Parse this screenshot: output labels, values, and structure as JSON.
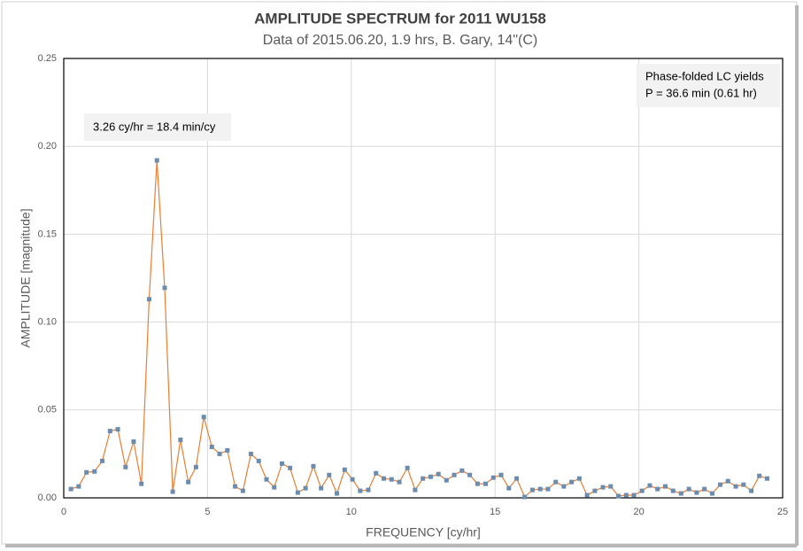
{
  "chart_data": {
    "type": "line",
    "title": "AMPLITUDE SPECTRUM for 2011 WU158",
    "subtitle": "Data of 2015.06.20, 1.9 hrs, B. Gary, 14\"(C)",
    "x_label": "FREQUENCY [cy/hr]",
    "y_label": "AMPLITUDE [magnitude]",
    "annotations": [
      "3.26 cy/hr = 18.4 min/cy",
      "Phase-folded LC yields",
      "P = 36.6 min (0.61 hr)"
    ],
    "color": "#ed7d31",
    "marker_color": "#6b8cae",
    "grid": true,
    "xlim": [
      0,
      25
    ],
    "xticks": [
      0,
      5,
      10,
      15,
      20,
      25
    ],
    "ylim": [
      0,
      0.25
    ],
    "yticks": [
      {
        "value": 0,
        "label": "0.00"
      },
      {
        "value": 0.05,
        "label": "0.05"
      },
      {
        "value": 0.1,
        "label": "0.10"
      },
      {
        "value": 0.15,
        "label": "0.15"
      },
      {
        "value": 0.2,
        "label": "0.20"
      },
      {
        "value": 0.25,
        "label": "0.25"
      }
    ],
    "x": [
      0.25,
      0.52,
      0.79,
      1.07,
      1.34,
      1.61,
      1.88,
      2.15,
      2.43,
      2.7,
      2.97,
      3.24,
      3.51,
      3.79,
      4.06,
      4.33,
      4.6,
      4.87,
      5.15,
      5.42,
      5.69,
      5.96,
      6.23,
      6.51,
      6.78,
      7.05,
      7.32,
      7.59,
      7.87,
      8.14,
      8.41,
      8.68,
      8.95,
      9.23,
      9.5,
      9.77,
      10.04,
      10.31,
      10.59,
      10.86,
      11.13,
      11.4,
      11.67,
      11.95,
      12.22,
      12.49,
      12.76,
      13.03,
      13.31,
      13.58,
      13.85,
      14.12,
      14.39,
      14.67,
      14.94,
      15.21,
      15.48,
      15.75,
      16.03,
      16.3,
      16.57,
      16.84,
      17.11,
      17.39,
      17.66,
      17.93,
      18.2,
      18.47,
      18.75,
      19.02,
      19.29,
      19.56,
      19.83,
      20.11,
      20.38,
      20.65,
      20.92,
      21.19,
      21.47,
      21.74,
      22.01,
      22.28,
      22.55,
      22.83,
      23.1,
      23.37,
      23.64,
      23.91,
      24.19,
      24.46
    ],
    "values": [
      0.005,
      0.0065,
      0.0145,
      0.015,
      0.021,
      0.038,
      0.039,
      0.0175,
      0.032,
      0.008,
      0.113,
      0.192,
      0.1195,
      0.0035,
      0.033,
      0.009,
      0.0175,
      0.046,
      0.029,
      0.025,
      0.027,
      0.0065,
      0.004,
      0.025,
      0.021,
      0.0105,
      0.006,
      0.0195,
      0.017,
      0.003,
      0.0055,
      0.018,
      0.0055,
      0.013,
      0.0025,
      0.016,
      0.0105,
      0.004,
      0.0045,
      0.014,
      0.011,
      0.0105,
      0.009,
      0.017,
      0.0045,
      0.011,
      0.012,
      0.0135,
      0.01,
      0.013,
      0.0155,
      0.013,
      0.008,
      0.008,
      0.0115,
      0.013,
      0.0055,
      0.011,
      0.0005,
      0.0045,
      0.005,
      0.005,
      0.009,
      0.0065,
      0.009,
      0.011,
      0.0015,
      0.004,
      0.006,
      0.0065,
      0.001,
      0.0015,
      0.0015,
      0.004,
      0.007,
      0.005,
      0.0065,
      0.004,
      0.0025,
      0.005,
      0.003,
      0.005,
      0.0025,
      0.0075,
      0.0095,
      0.0065,
      0.0075,
      0.004,
      0.0125,
      0.011
    ]
  }
}
